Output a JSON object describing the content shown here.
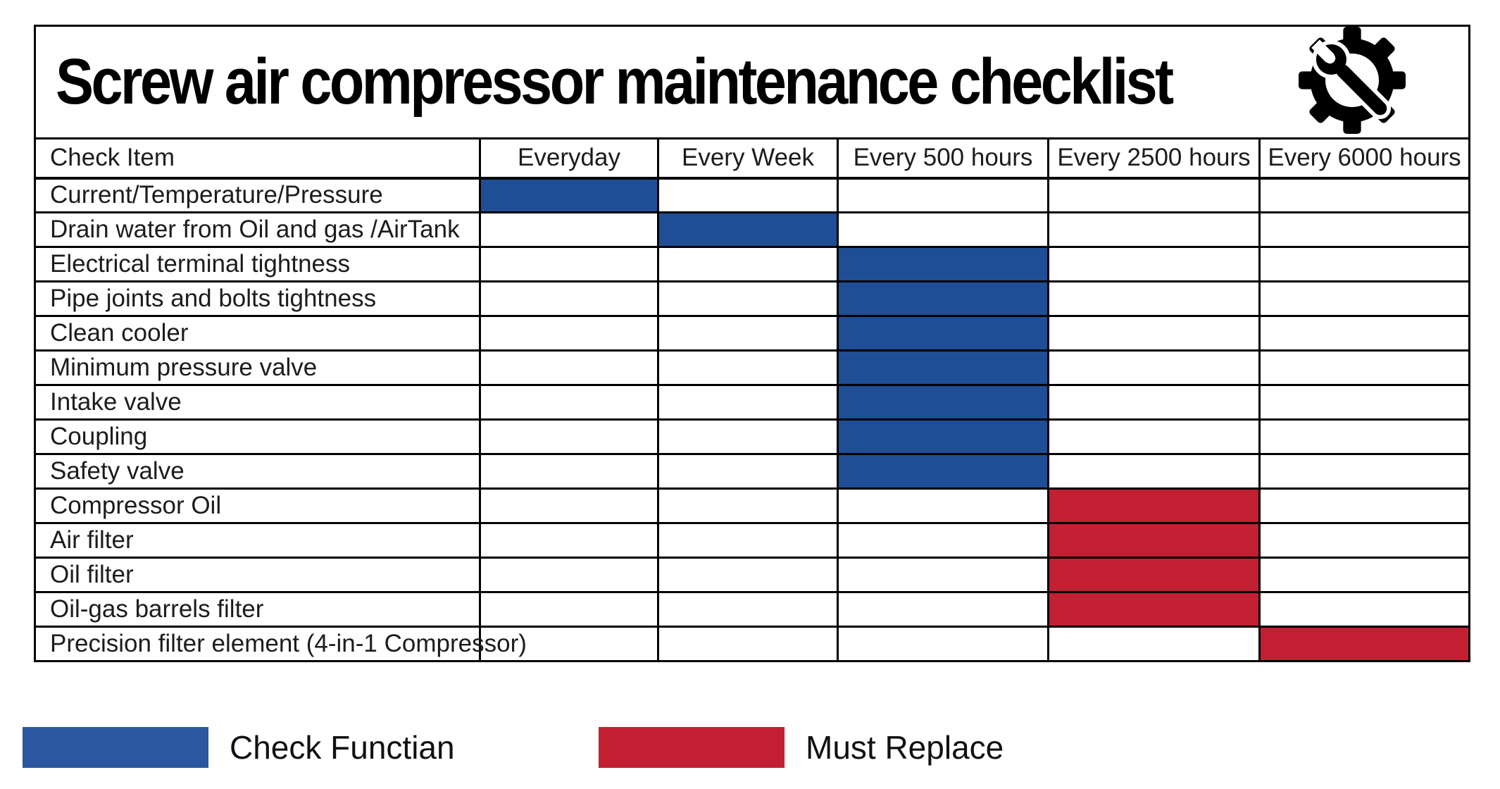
{
  "title": {
    "text": "Screw air compressor maintenance checklist",
    "icon": "gear-wrench-icon"
  },
  "colors": {
    "check_fill": "#1f4e96",
    "replace_fill": "#c21f33",
    "legend_check_fill": "#2b56a0",
    "legend_replace_fill": "#c21f33"
  },
  "table": {
    "columns": [
      "Check Item",
      "Everyday",
      "Every Week",
      "Every 500 hours",
      "Every 2500 hours",
      "Every 6000 hours"
    ],
    "rows": [
      {
        "item": "Current/Temperature/Pressure",
        "mark": "check",
        "mark_col": 0
      },
      {
        "item": "Drain water from Oil and gas /AirTank",
        "mark": "check",
        "mark_col": 1
      },
      {
        "item": "Electrical terminal tightness",
        "mark": "check",
        "mark_col": 2
      },
      {
        "item": "Pipe joints and bolts tightness",
        "mark": "check",
        "mark_col": 2
      },
      {
        "item": "Clean cooler",
        "mark": "check",
        "mark_col": 2
      },
      {
        "item": "Minimum pressure valve",
        "mark": "check",
        "mark_col": 2
      },
      {
        "item": "Intake valve",
        "mark": "check",
        "mark_col": 2
      },
      {
        "item": "Coupling",
        "mark": "check",
        "mark_col": 2
      },
      {
        "item": "Safety valve",
        "mark": "check",
        "mark_col": 2
      },
      {
        "item": "Compressor Oil",
        "mark": "replace",
        "mark_col": 3
      },
      {
        "item": "Air filter",
        "mark": "replace",
        "mark_col": 3
      },
      {
        "item": "Oil filter",
        "mark": "replace",
        "mark_col": 3
      },
      {
        "item": "Oil-gas barrels filter",
        "mark": "replace",
        "mark_col": 3
      },
      {
        "item": "Precision filter element  (4-in-1 Compressor)",
        "mark": "replace",
        "mark_col": 4
      }
    ]
  },
  "legend": [
    {
      "label": "Check Functian",
      "type": "check"
    },
    {
      "label": "Must Replace",
      "type": "replace"
    }
  ]
}
